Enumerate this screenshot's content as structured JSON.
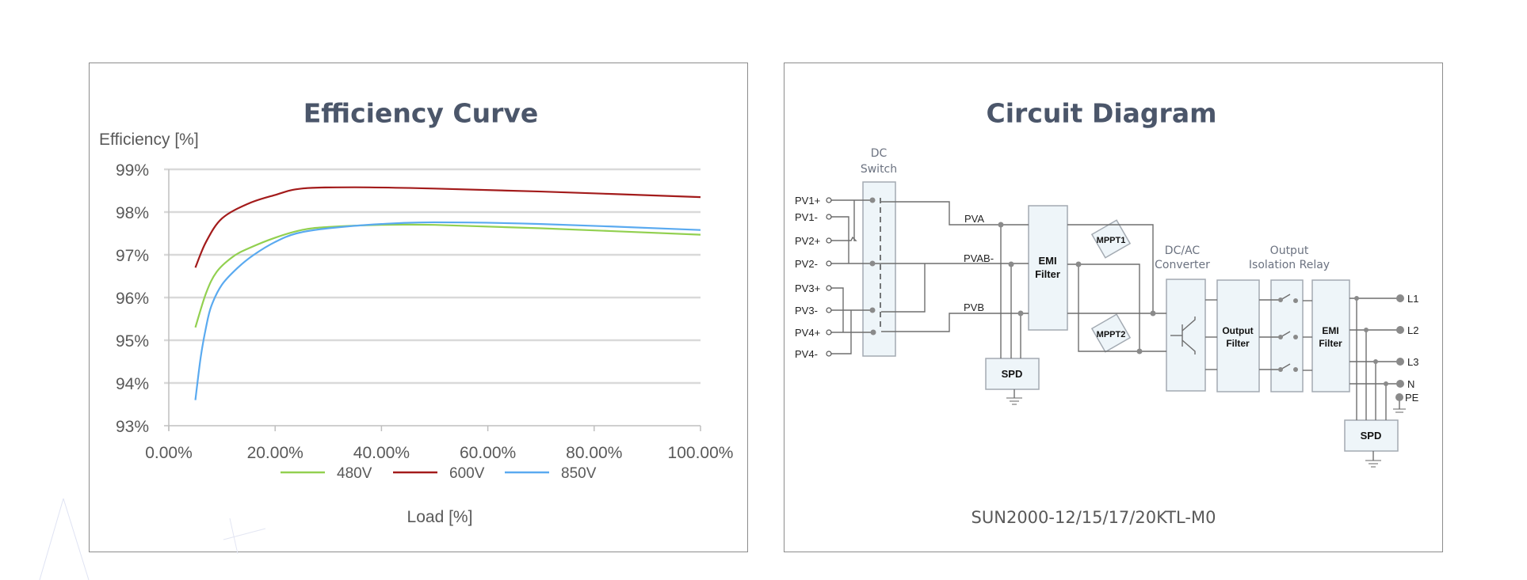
{
  "chart_data": {
    "type": "line",
    "title": "Efficiency Curve",
    "ylabel": "Efficiency [%]",
    "xlabel": "Load [%]",
    "xlim": [
      0,
      100
    ],
    "ylim": [
      93,
      99
    ],
    "x_ticks": [
      "0.00%",
      "20.00%",
      "40.00%",
      "60.00%",
      "80.00%",
      "100.00%"
    ],
    "x_tick_values": [
      0,
      20,
      40,
      60,
      80,
      100
    ],
    "y_ticks": [
      "99%",
      "98%",
      "97%",
      "96%",
      "95%",
      "94%",
      "93%"
    ],
    "y_tick_values": [
      99,
      98,
      97,
      96,
      95,
      94,
      93
    ],
    "grid": true,
    "legend_position": "bottom",
    "series": [
      {
        "name": "480V",
        "color": "#92d050",
        "x": [
          5,
          7,
          9,
          12,
          15,
          20,
          25,
          30,
          40,
          50,
          70,
          100
        ],
        "y": [
          95.3,
          96.1,
          96.6,
          96.95,
          97.15,
          97.4,
          97.58,
          97.65,
          97.7,
          97.7,
          97.62,
          97.47
        ]
      },
      {
        "name": "600V",
        "color": "#a31b1b",
        "x": [
          5,
          7,
          10,
          15,
          20,
          25,
          35,
          50,
          70,
          100
        ],
        "y": [
          96.7,
          97.3,
          97.85,
          98.2,
          98.4,
          98.55,
          98.58,
          98.55,
          98.48,
          98.35
        ]
      },
      {
        "name": "850V",
        "color": "#5aaaf0",
        "x": [
          5,
          6,
          7,
          8,
          10,
          13,
          16,
          20,
          24,
          30,
          40,
          50,
          70,
          100
        ],
        "y": [
          93.6,
          94.6,
          95.3,
          95.8,
          96.3,
          96.7,
          97.0,
          97.3,
          97.5,
          97.62,
          97.72,
          97.76,
          97.72,
          97.58
        ]
      }
    ]
  },
  "circuit": {
    "title": "Circuit Diagram",
    "model": "SUN2000-12/15/17/20KTL-M0",
    "dc_switch": [
      "DC",
      "Switch"
    ],
    "pv_inputs": [
      "PV1+",
      "PV1-",
      "PV2+",
      "PV2-",
      "PV3+",
      "PV3-",
      "PV4+",
      "PV4-"
    ],
    "buses": [
      "PVA",
      "PVAB-",
      "PVB"
    ],
    "emi_filter": [
      "EMI",
      "Filter"
    ],
    "mppt": [
      "MPPT1",
      "MPPT2"
    ],
    "spd": "SPD",
    "converter": [
      "DC/AC",
      "Converter"
    ],
    "output_filter": [
      "Output",
      "Filter"
    ],
    "relay": [
      "Output",
      "Isolation Relay"
    ],
    "outputs": [
      "L1",
      "L2",
      "L3",
      "N",
      "PE"
    ]
  }
}
